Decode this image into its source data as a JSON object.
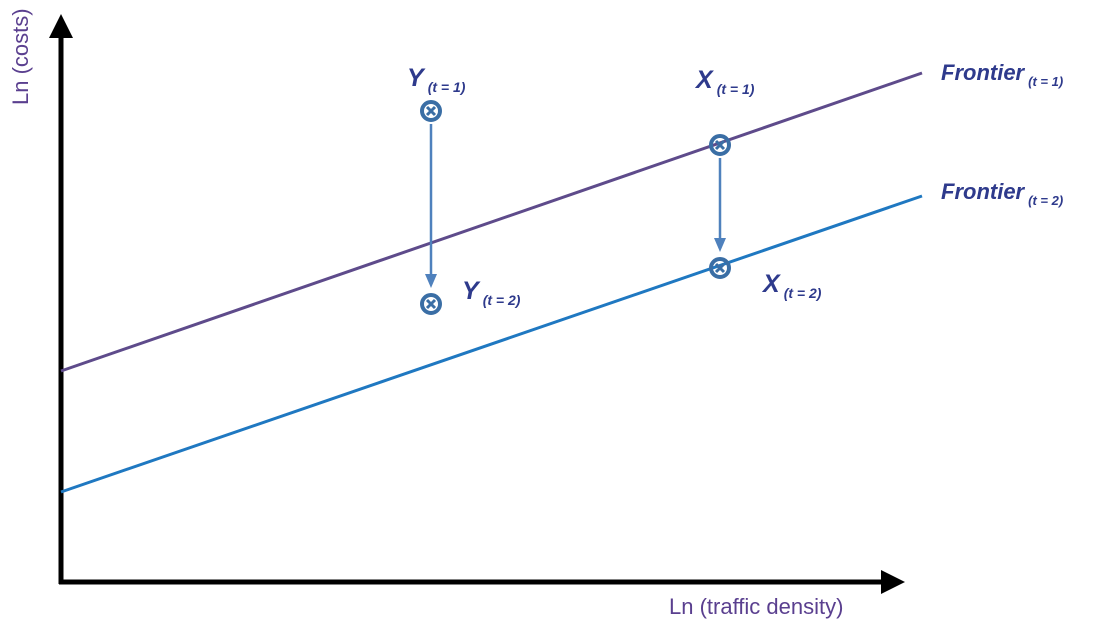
{
  "axes": {
    "x_label": "Ln (traffic density)",
    "y_label": "Ln (costs)"
  },
  "frontiers": [
    {
      "name": "Frontier",
      "subscript": "(t = 1)",
      "color": "#5e4b8b"
    },
    {
      "name": "Frontier",
      "subscript": "(t = 2)",
      "color": "#1f78c1"
    }
  ],
  "points": [
    {
      "name": "Y",
      "subscript": "(t = 1)"
    },
    {
      "name": "Y",
      "subscript": "(t = 2)"
    },
    {
      "name": "X",
      "subscript": "(t = 1)"
    },
    {
      "name": "X",
      "subscript": "(t = 2)"
    }
  ],
  "colors": {
    "axis": "#000000",
    "axis_label": "#5a3f8f",
    "label": "#2e3a8c",
    "marker": "#3a6ea5",
    "arrow": "#4f81bd"
  }
}
